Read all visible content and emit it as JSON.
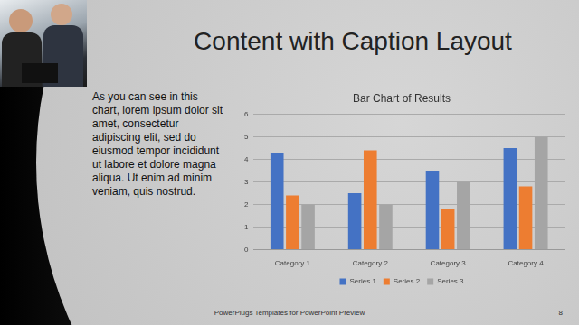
{
  "slide": {
    "title": "Content with Caption Layout",
    "caption": "As you can see in this chart, lorem ipsum dolor sit amet, consectetur adipiscing elit, sed do eiusmod tempor incididunt ut labore et dolore magna aliqua. Ut enim ad minim veniam, quis nostrud.",
    "footer": "PowerPlugs Templates for PowerPoint Preview",
    "page": 8
  },
  "chart_data": {
    "type": "bar",
    "title": "Bar Chart of Results",
    "categories": [
      "Category 1",
      "Category 2",
      "Category 3",
      "Category 4"
    ],
    "series": [
      {
        "name": "Series 1",
        "color": "#4472c4",
        "values": [
          4.3,
          2.5,
          3.5,
          4.5
        ]
      },
      {
        "name": "Series 2",
        "color": "#ed7d31",
        "values": [
          2.4,
          4.4,
          1.8,
          2.8
        ]
      },
      {
        "name": "Series 3",
        "color": "#a5a5a5",
        "values": [
          2.0,
          2.0,
          3.0,
          5.0
        ]
      }
    ],
    "ylim": [
      0,
      6
    ],
    "yticks": [
      0,
      1,
      2,
      3,
      4,
      5,
      6
    ],
    "grid": true,
    "legend": "bottom"
  }
}
